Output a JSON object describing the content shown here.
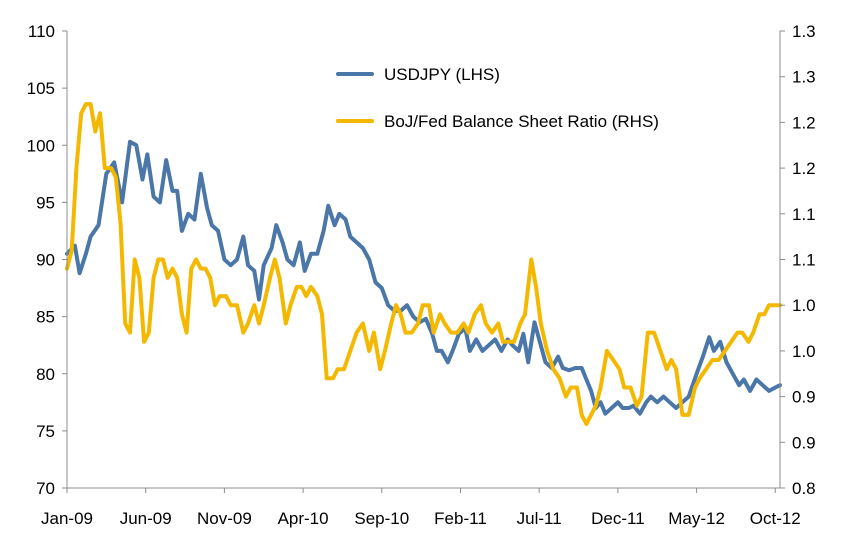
{
  "chart_data": {
    "type": "line",
    "title": "",
    "xlabel": "",
    "ylabel": "",
    "y2label": "",
    "grid": false,
    "legend_position": "top-center",
    "x_ticks": [
      "Jan-09",
      "Jun-09",
      "Nov-09",
      "Apr-10",
      "Sep-10",
      "Feb-11",
      "Jul-11",
      "Dec-11",
      "May-12",
      "Oct-12"
    ],
    "x_range_months": [
      0,
      45.3
    ],
    "ylim_left": [
      70,
      110
    ],
    "y_ticks_left": [
      "70",
      "75",
      "80",
      "85",
      "90",
      "95",
      "100",
      "105",
      "110"
    ],
    "ylim_right": [
      0.8,
      1.3
    ],
    "y_ticks_right": [
      "0.8",
      "0.9",
      "0.9",
      "1.0",
      "1.0",
      "1.1",
      "1.1",
      "1.2",
      "1.2",
      "1.3",
      "1.3"
    ],
    "series": [
      {
        "name": "USDJPY (LHS)",
        "axis": "left",
        "color": "#4A76A8",
        "points": [
          [
            0,
            90.5
          ],
          [
            0.5,
            91.2
          ],
          [
            0.8,
            88.8
          ],
          [
            1.2,
            90.5
          ],
          [
            1.5,
            92
          ],
          [
            2,
            93
          ],
          [
            2.5,
            97.5
          ],
          [
            3,
            98.5
          ],
          [
            3.5,
            95
          ],
          [
            4,
            100.3
          ],
          [
            4.4,
            100
          ],
          [
            4.8,
            97
          ],
          [
            5.1,
            99.2
          ],
          [
            5.5,
            95.5
          ],
          [
            5.9,
            95
          ],
          [
            6.3,
            98.7
          ],
          [
            6.7,
            96
          ],
          [
            7,
            96
          ],
          [
            7.3,
            92.5
          ],
          [
            7.7,
            94
          ],
          [
            8.1,
            93.5
          ],
          [
            8.5,
            97.5
          ],
          [
            8.9,
            94.5
          ],
          [
            9.2,
            93
          ],
          [
            9.6,
            92.5
          ],
          [
            10,
            90
          ],
          [
            10.4,
            89.5
          ],
          [
            10.8,
            90
          ],
          [
            11.2,
            92
          ],
          [
            11.5,
            89.5
          ],
          [
            11.9,
            89
          ],
          [
            12.2,
            86.5
          ],
          [
            12.5,
            89.5
          ],
          [
            13,
            91
          ],
          [
            13.3,
            93
          ],
          [
            13.7,
            91.5
          ],
          [
            14,
            90
          ],
          [
            14.4,
            89.5
          ],
          [
            14.8,
            91.5
          ],
          [
            15.1,
            89
          ],
          [
            15.5,
            90.5
          ],
          [
            15.9,
            90.5
          ],
          [
            16.3,
            92.5
          ],
          [
            16.6,
            94.7
          ],
          [
            17,
            93
          ],
          [
            17.3,
            94
          ],
          [
            17.7,
            93.5
          ],
          [
            18,
            92
          ],
          [
            18.4,
            91.5
          ],
          [
            18.8,
            91
          ],
          [
            19.2,
            90
          ],
          [
            19.6,
            88
          ],
          [
            20,
            87.5
          ],
          [
            20.4,
            86
          ],
          [
            20.8,
            85.5
          ],
          [
            21.2,
            85.5
          ],
          [
            21.6,
            86
          ],
          [
            22,
            85
          ],
          [
            22.4,
            84.5
          ],
          [
            22.8,
            84.8
          ],
          [
            23.2,
            83.5
          ],
          [
            23.5,
            82
          ],
          [
            23.8,
            82
          ],
          [
            24.2,
            81
          ],
          [
            24.5,
            82
          ],
          [
            24.9,
            83.5
          ],
          [
            25.3,
            84
          ],
          [
            25.6,
            82
          ],
          [
            26,
            83
          ],
          [
            26.4,
            82
          ],
          [
            26.8,
            82.5
          ],
          [
            27.2,
            83
          ],
          [
            27.6,
            82
          ],
          [
            28,
            83
          ],
          [
            28.3,
            82.5
          ],
          [
            28.7,
            82
          ],
          [
            29,
            83.5
          ],
          [
            29.3,
            81
          ],
          [
            29.7,
            84.5
          ],
          [
            30,
            83
          ],
          [
            30.4,
            81
          ],
          [
            30.8,
            80.5
          ],
          [
            31.2,
            81.5
          ],
          [
            31.5,
            80.5
          ],
          [
            31.9,
            80.3
          ],
          [
            32.3,
            80.5
          ],
          [
            32.7,
            80.5
          ],
          [
            33,
            79.5
          ],
          [
            33.3,
            78.5
          ],
          [
            33.6,
            77
          ],
          [
            33.9,
            77.5
          ],
          [
            34.2,
            76.5
          ],
          [
            34.6,
            77
          ],
          [
            35,
            77.5
          ],
          [
            35.3,
            77
          ],
          [
            35.7,
            77
          ],
          [
            36,
            77.2
          ],
          [
            36.4,
            76.5
          ],
          [
            36.8,
            77.5
          ],
          [
            37.1,
            78
          ],
          [
            37.5,
            77.5
          ],
          [
            37.9,
            78
          ],
          [
            38.3,
            77.5
          ],
          [
            38.7,
            77
          ],
          [
            39.1,
            77.5
          ],
          [
            39.5,
            78
          ],
          [
            40,
            80
          ],
          [
            40.4,
            81.5
          ],
          [
            40.8,
            83.2
          ],
          [
            41.1,
            82
          ],
          [
            41.5,
            82.8
          ],
          [
            41.9,
            81
          ],
          [
            42.3,
            80
          ],
          [
            42.7,
            79
          ],
          [
            43,
            79.5
          ],
          [
            43.4,
            78.5
          ],
          [
            43.8,
            79.5
          ],
          [
            44.2,
            79
          ],
          [
            44.6,
            78.5
          ],
          [
            45,
            78.8
          ],
          [
            45.3,
            79
          ]
        ]
      },
      {
        "name": "BoJ/Fed Balance Sheet Ratio (RHS)",
        "axis": "right",
        "color": "#F5B800",
        "points": [
          [
            0,
            1.04
          ],
          [
            0.3,
            1.06
          ],
          [
            0.6,
            1.15
          ],
          [
            0.9,
            1.21
          ],
          [
            1.2,
            1.22
          ],
          [
            1.5,
            1.22
          ],
          [
            1.8,
            1.19
          ],
          [
            2.1,
            1.21
          ],
          [
            2.4,
            1.15
          ],
          [
            2.8,
            1.15
          ],
          [
            3.1,
            1.14
          ],
          [
            3.4,
            1.09
          ],
          [
            3.7,
            0.98
          ],
          [
            4,
            0.97
          ],
          [
            4.3,
            1.05
          ],
          [
            4.6,
            1.03
          ],
          [
            4.9,
            0.96
          ],
          [
            5.2,
            0.97
          ],
          [
            5.5,
            1.03
          ],
          [
            5.8,
            1.05
          ],
          [
            6.1,
            1.05
          ],
          [
            6.4,
            1.03
          ],
          [
            6.7,
            1.04
          ],
          [
            7,
            1.03
          ],
          [
            7.3,
            0.99
          ],
          [
            7.6,
            0.97
          ],
          [
            7.9,
            1.04
          ],
          [
            8.2,
            1.05
          ],
          [
            8.5,
            1.04
          ],
          [
            8.8,
            1.04
          ],
          [
            9.1,
            1.03
          ],
          [
            9.4,
            1.0
          ],
          [
            9.7,
            1.01
          ],
          [
            10.1,
            1.01
          ],
          [
            10.4,
            1.0
          ],
          [
            10.8,
            1.0
          ],
          [
            11.2,
            0.97
          ],
          [
            11.5,
            0.98
          ],
          [
            11.9,
            1.0
          ],
          [
            12.2,
            0.98
          ],
          [
            12.5,
            1.0
          ],
          [
            12.9,
            1.03
          ],
          [
            13.2,
            1.05
          ],
          [
            13.5,
            1.03
          ],
          [
            13.9,
            0.98
          ],
          [
            14.2,
            1.0
          ],
          [
            14.6,
            1.02
          ],
          [
            14.9,
            1.02
          ],
          [
            15.2,
            1.01
          ],
          [
            15.5,
            1.02
          ],
          [
            15.9,
            1.01
          ],
          [
            16.2,
            0.99
          ],
          [
            16.5,
            0.92
          ],
          [
            16.9,
            0.92
          ],
          [
            17.2,
            0.93
          ],
          [
            17.6,
            0.93
          ],
          [
            18,
            0.95
          ],
          [
            18.4,
            0.97
          ],
          [
            18.8,
            0.98
          ],
          [
            19.2,
            0.95
          ],
          [
            19.5,
            0.97
          ],
          [
            19.9,
            0.93
          ],
          [
            20.2,
            0.95
          ],
          [
            20.6,
            0.98
          ],
          [
            20.9,
            1.0
          ],
          [
            21.2,
            0.99
          ],
          [
            21.5,
            0.97
          ],
          [
            21.9,
            0.97
          ],
          [
            22.3,
            0.98
          ],
          [
            22.6,
            1.0
          ],
          [
            23,
            1.0
          ],
          [
            23.3,
            0.97
          ],
          [
            23.7,
            0.99
          ],
          [
            24,
            0.98
          ],
          [
            24.4,
            0.97
          ],
          [
            24.8,
            0.97
          ],
          [
            25.2,
            0.98
          ],
          [
            25.5,
            0.97
          ],
          [
            25.9,
            0.99
          ],
          [
            26.3,
            1.0
          ],
          [
            26.6,
            0.98
          ],
          [
            27,
            0.97
          ],
          [
            27.4,
            0.98
          ],
          [
            27.7,
            0.96
          ],
          [
            28.1,
            0.96
          ],
          [
            28.4,
            0.96
          ],
          [
            28.8,
            0.98
          ],
          [
            29.1,
            0.99
          ],
          [
            29.5,
            1.05
          ],
          [
            29.8,
            1.02
          ],
          [
            30.1,
            0.98
          ],
          [
            30.5,
            0.95
          ],
          [
            30.9,
            0.93
          ],
          [
            31.3,
            0.92
          ],
          [
            31.7,
            0.9
          ],
          [
            32,
            0.91
          ],
          [
            32.4,
            0.91
          ],
          [
            32.7,
            0.88
          ],
          [
            33,
            0.87
          ],
          [
            33.3,
            0.88
          ],
          [
            33.6,
            0.89
          ],
          [
            33.9,
            0.91
          ],
          [
            34.3,
            0.95
          ],
          [
            34.7,
            0.94
          ],
          [
            35.1,
            0.93
          ],
          [
            35.4,
            0.91
          ],
          [
            35.8,
            0.91
          ],
          [
            36.2,
            0.89
          ],
          [
            36.5,
            0.9
          ],
          [
            36.9,
            0.97
          ],
          [
            37.3,
            0.97
          ],
          [
            37.7,
            0.95
          ],
          [
            38.1,
            0.93
          ],
          [
            38.4,
            0.94
          ],
          [
            38.7,
            0.93
          ],
          [
            39.1,
            0.88
          ],
          [
            39.5,
            0.88
          ],
          [
            39.9,
            0.91
          ],
          [
            40.2,
            0.92
          ],
          [
            40.6,
            0.93
          ],
          [
            41,
            0.94
          ],
          [
            41.4,
            0.94
          ],
          [
            41.8,
            0.95
          ],
          [
            42.2,
            0.96
          ],
          [
            42.6,
            0.97
          ],
          [
            42.9,
            0.97
          ],
          [
            43.3,
            0.96
          ],
          [
            43.6,
            0.97
          ],
          [
            44,
            0.99
          ],
          [
            44.3,
            0.99
          ],
          [
            44.6,
            1.0
          ],
          [
            45,
            1.0
          ],
          [
            45.3,
            1.0
          ]
        ]
      }
    ]
  }
}
